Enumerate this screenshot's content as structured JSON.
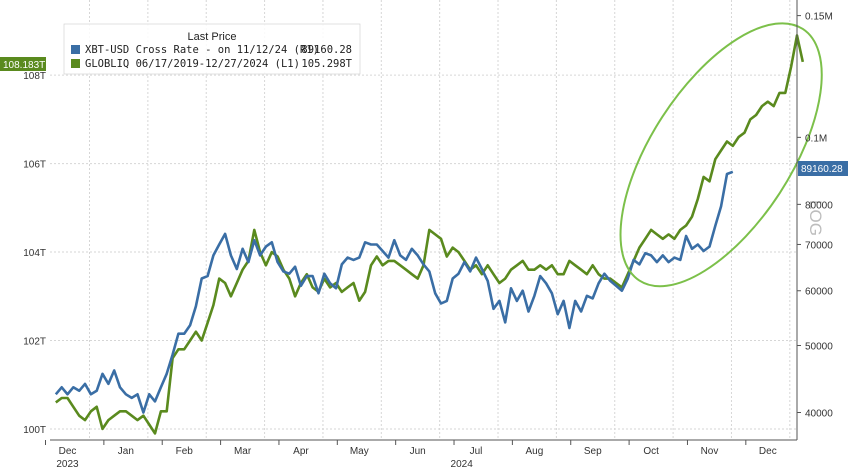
{
  "chart_data": {
    "type": "line",
    "legend": {
      "title": "Last Price",
      "entries": [
        {
          "label": "XBT-USD Cross Rate - on 11/12/24 (R1)",
          "value": "89160.28",
          "color": "#3a6ea5"
        },
        {
          "label": "GLOBLIQ 06/17/2019-12/27/2024 (L1)",
          "value": "105.298T",
          "color": "#5a8a1e"
        }
      ]
    },
    "badges": {
      "left": "108.183T",
      "right": "89160.28"
    },
    "watermark": "LOG",
    "x_ticks": [
      {
        "label": "Dec",
        "value": 0.2
      },
      {
        "label": "Jan",
        "value": 1.2
      },
      {
        "label": "Feb",
        "value": 2.2
      },
      {
        "label": "Mar",
        "value": 3.2
      },
      {
        "label": "Apr",
        "value": 4.2
      },
      {
        "label": "May",
        "value": 5.2
      },
      {
        "label": "Jun",
        "value": 6.2
      },
      {
        "label": "Jul",
        "value": 7.2
      },
      {
        "label": "Aug",
        "value": 8.2
      },
      {
        "label": "Sep",
        "value": 9.2
      },
      {
        "label": "Oct",
        "value": 10.2
      },
      {
        "label": "Nov",
        "value": 11.2
      },
      {
        "label": "Dec",
        "value": 12.2
      }
    ],
    "x_years": [
      {
        "label": "2023",
        "value": 0.2
      },
      {
        "label": "2024",
        "value": 6.2
      }
    ],
    "xlim": [
      -0.1,
      12.7
    ],
    "left_axis": {
      "ticks": [
        {
          "label": "100T",
          "value": 100
        },
        {
          "label": "102T",
          "value": 102
        },
        {
          "label": "104T",
          "value": 104
        },
        {
          "label": "106T",
          "value": 106
        },
        {
          "label": "108T",
          "value": 108
        }
      ],
      "range": [
        99.75,
        109.7
      ]
    },
    "right_axis": {
      "scale": "log",
      "ticks": [
        {
          "label": "40000",
          "value": 40000
        },
        {
          "label": "50000",
          "value": 50000
        },
        {
          "label": "60000",
          "value": 60000
        },
        {
          "label": "70000",
          "value": 70000
        },
        {
          "label": "80000",
          "value": 80000
        },
        {
          "label": "0.1M",
          "value": 100000
        },
        {
          "label": "0.15M",
          "value": 150000
        }
      ],
      "range": [
        36500,
        158000
      ]
    },
    "series": [
      {
        "name": "GLOBLIQ",
        "axis": "left",
        "color": "#5a8a1e",
        "points": [
          [
            0.0,
            100.6
          ],
          [
            0.1,
            100.7
          ],
          [
            0.2,
            100.7
          ],
          [
            0.3,
            100.5
          ],
          [
            0.4,
            100.3
          ],
          [
            0.5,
            100.2
          ],
          [
            0.6,
            100.4
          ],
          [
            0.7,
            100.5
          ],
          [
            0.8,
            100.0
          ],
          [
            0.9,
            100.2
          ],
          [
            1.0,
            100.3
          ],
          [
            1.1,
            100.4
          ],
          [
            1.2,
            100.4
          ],
          [
            1.3,
            100.3
          ],
          [
            1.4,
            100.2
          ],
          [
            1.5,
            100.3
          ],
          [
            1.6,
            100.1
          ],
          [
            1.7,
            99.9
          ],
          [
            1.8,
            100.4
          ],
          [
            1.9,
            100.4
          ],
          [
            2.0,
            101.6
          ],
          [
            2.1,
            101.8
          ],
          [
            2.2,
            101.8
          ],
          [
            2.3,
            102.0
          ],
          [
            2.4,
            102.2
          ],
          [
            2.5,
            102.0
          ],
          [
            2.6,
            102.4
          ],
          [
            2.7,
            102.8
          ],
          [
            2.8,
            103.4
          ],
          [
            2.9,
            103.3
          ],
          [
            3.0,
            103.0
          ],
          [
            3.1,
            103.3
          ],
          [
            3.2,
            103.6
          ],
          [
            3.3,
            103.8
          ],
          [
            3.4,
            104.5
          ],
          [
            3.5,
            104.0
          ],
          [
            3.6,
            103.7
          ],
          [
            3.7,
            104.0
          ],
          [
            3.8,
            103.9
          ],
          [
            3.9,
            103.6
          ],
          [
            4.0,
            103.4
          ],
          [
            4.1,
            103.0
          ],
          [
            4.2,
            103.3
          ],
          [
            4.3,
            103.5
          ],
          [
            4.4,
            103.2
          ],
          [
            4.5,
            103.1
          ],
          [
            4.6,
            103.4
          ],
          [
            4.7,
            103.2
          ],
          [
            4.8,
            103.3
          ],
          [
            4.9,
            103.1
          ],
          [
            5.0,
            103.2
          ],
          [
            5.1,
            103.3
          ],
          [
            5.2,
            102.9
          ],
          [
            5.3,
            103.1
          ],
          [
            5.4,
            103.7
          ],
          [
            5.5,
            103.9
          ],
          [
            5.6,
            103.7
          ],
          [
            5.7,
            103.8
          ],
          [
            5.8,
            103.8
          ],
          [
            5.9,
            103.7
          ],
          [
            6.0,
            103.6
          ],
          [
            6.1,
            103.5
          ],
          [
            6.2,
            103.4
          ],
          [
            6.3,
            103.7
          ],
          [
            6.4,
            104.5
          ],
          [
            6.5,
            104.4
          ],
          [
            6.6,
            104.3
          ],
          [
            6.7,
            103.9
          ],
          [
            6.8,
            104.1
          ],
          [
            6.9,
            104.0
          ],
          [
            7.0,
            103.8
          ],
          [
            7.1,
            103.6
          ],
          [
            7.2,
            103.7
          ],
          [
            7.3,
            103.5
          ],
          [
            7.4,
            103.7
          ],
          [
            7.5,
            103.5
          ],
          [
            7.6,
            103.3
          ],
          [
            7.7,
            103.4
          ],
          [
            7.8,
            103.6
          ],
          [
            7.9,
            103.7
          ],
          [
            8.0,
            103.8
          ],
          [
            8.1,
            103.6
          ],
          [
            8.2,
            103.6
          ],
          [
            8.3,
            103.7
          ],
          [
            8.4,
            103.6
          ],
          [
            8.5,
            103.7
          ],
          [
            8.6,
            103.5
          ],
          [
            8.7,
            103.5
          ],
          [
            8.8,
            103.8
          ],
          [
            8.9,
            103.7
          ],
          [
            9.0,
            103.6
          ],
          [
            9.1,
            103.5
          ],
          [
            9.2,
            103.7
          ],
          [
            9.3,
            103.5
          ],
          [
            9.4,
            103.4
          ],
          [
            9.5,
            103.4
          ],
          [
            9.6,
            103.3
          ],
          [
            9.7,
            103.2
          ],
          [
            9.8,
            103.5
          ],
          [
            9.9,
            103.8
          ],
          [
            10.0,
            104.1
          ],
          [
            10.1,
            104.3
          ],
          [
            10.2,
            104.5
          ],
          [
            10.3,
            104.4
          ],
          [
            10.4,
            104.3
          ],
          [
            10.5,
            104.4
          ],
          [
            10.6,
            104.3
          ],
          [
            10.7,
            104.5
          ],
          [
            10.8,
            104.6
          ],
          [
            10.9,
            104.8
          ],
          [
            11.0,
            105.2
          ],
          [
            11.1,
            105.7
          ],
          [
            11.2,
            105.6
          ],
          [
            11.3,
            106.1
          ],
          [
            11.4,
            106.3
          ],
          [
            11.5,
            106.5
          ],
          [
            11.6,
            106.4
          ],
          [
            11.7,
            106.6
          ],
          [
            11.8,
            106.7
          ],
          [
            11.9,
            107.0
          ],
          [
            12.0,
            107.1
          ],
          [
            12.1,
            107.3
          ],
          [
            12.2,
            107.4
          ],
          [
            12.3,
            107.3
          ],
          [
            12.4,
            107.6
          ],
          [
            12.5,
            107.6
          ],
          [
            12.6,
            108.2
          ],
          [
            12.7,
            108.9
          ],
          [
            12.75,
            108.6
          ],
          [
            12.8,
            108.3
          ]
        ]
      },
      {
        "name": "XBT-USD Cross Rate",
        "axis": "right",
        "color": "#3a6ea5",
        "points": [
          [
            0.0,
            42500
          ],
          [
            0.1,
            43500
          ],
          [
            0.2,
            42500
          ],
          [
            0.3,
            43500
          ],
          [
            0.4,
            43000
          ],
          [
            0.5,
            44000
          ],
          [
            0.6,
            42500
          ],
          [
            0.7,
            43000
          ],
          [
            0.8,
            45500
          ],
          [
            0.9,
            44000
          ],
          [
            1.0,
            46000
          ],
          [
            1.1,
            43500
          ],
          [
            1.2,
            42500
          ],
          [
            1.3,
            42000
          ],
          [
            1.4,
            42500
          ],
          [
            1.5,
            40000
          ],
          [
            1.6,
            42500
          ],
          [
            1.7,
            41500
          ],
          [
            1.8,
            43500
          ],
          [
            1.9,
            45500
          ],
          [
            2.0,
            48500
          ],
          [
            2.1,
            52000
          ],
          [
            2.2,
            52000
          ],
          [
            2.3,
            53500
          ],
          [
            2.4,
            57000
          ],
          [
            2.5,
            62500
          ],
          [
            2.6,
            63000
          ],
          [
            2.7,
            67500
          ],
          [
            2.8,
            70000
          ],
          [
            2.9,
            72500
          ],
          [
            3.0,
            67500
          ],
          [
            3.1,
            64500
          ],
          [
            3.2,
            69000
          ],
          [
            3.3,
            66000
          ],
          [
            3.4,
            71000
          ],
          [
            3.5,
            67500
          ],
          [
            3.6,
            69500
          ],
          [
            3.7,
            70500
          ],
          [
            3.8,
            66000
          ],
          [
            3.9,
            64000
          ],
          [
            4.0,
            63500
          ],
          [
            4.1,
            65000
          ],
          [
            4.2,
            61000
          ],
          [
            4.3,
            63000
          ],
          [
            4.4,
            63000
          ],
          [
            4.5,
            59500
          ],
          [
            4.6,
            63500
          ],
          [
            4.7,
            61500
          ],
          [
            4.8,
            60500
          ],
          [
            4.9,
            65500
          ],
          [
            5.0,
            67000
          ],
          [
            5.1,
            66500
          ],
          [
            5.2,
            67000
          ],
          [
            5.3,
            70500
          ],
          [
            5.4,
            70000
          ],
          [
            5.5,
            70000
          ],
          [
            5.6,
            68500
          ],
          [
            5.7,
            67000
          ],
          [
            5.8,
            71000
          ],
          [
            5.9,
            67500
          ],
          [
            6.0,
            66500
          ],
          [
            6.1,
            69000
          ],
          [
            6.2,
            67500
          ],
          [
            6.3,
            65500
          ],
          [
            6.4,
            64000
          ],
          [
            6.5,
            59500
          ],
          [
            6.6,
            57500
          ],
          [
            6.7,
            58000
          ],
          [
            6.8,
            62500
          ],
          [
            6.9,
            63500
          ],
          [
            7.0,
            66000
          ],
          [
            7.1,
            64000
          ],
          [
            7.2,
            67000
          ],
          [
            7.3,
            64500
          ],
          [
            7.4,
            62000
          ],
          [
            7.5,
            56500
          ],
          [
            7.6,
            58000
          ],
          [
            7.7,
            54000
          ],
          [
            7.8,
            60500
          ],
          [
            7.9,
            58000
          ],
          [
            8.0,
            60000
          ],
          [
            8.1,
            56000
          ],
          [
            8.2,
            59000
          ],
          [
            8.3,
            63000
          ],
          [
            8.4,
            61500
          ],
          [
            8.5,
            59500
          ],
          [
            8.6,
            55500
          ],
          [
            8.7,
            58000
          ],
          [
            8.8,
            53000
          ],
          [
            8.9,
            58000
          ],
          [
            9.0,
            56000
          ],
          [
            9.1,
            59000
          ],
          [
            9.2,
            58500
          ],
          [
            9.3,
            61500
          ],
          [
            9.4,
            63500
          ],
          [
            9.5,
            62000
          ],
          [
            9.6,
            61000
          ],
          [
            9.7,
            60000
          ],
          [
            9.8,
            62500
          ],
          [
            9.9,
            66500
          ],
          [
            10.0,
            65500
          ],
          [
            10.1,
            68000
          ],
          [
            10.2,
            67500
          ],
          [
            10.3,
            66000
          ],
          [
            10.4,
            67500
          ],
          [
            10.5,
            66000
          ],
          [
            10.6,
            67000
          ],
          [
            10.7,
            66500
          ],
          [
            10.8,
            72000
          ],
          [
            10.9,
            69000
          ],
          [
            11.0,
            70000
          ],
          [
            11.1,
            68500
          ],
          [
            11.2,
            69500
          ],
          [
            11.3,
            74500
          ],
          [
            11.4,
            79500
          ],
          [
            11.5,
            88500
          ],
          [
            11.6,
            89160
          ]
        ]
      }
    ],
    "ellipse_annotation": {
      "color": "#7cc04a",
      "x_from": 9.95,
      "x_to": 12.85,
      "y_left_from": 102.9,
      "y_left_to": 109.5
    }
  }
}
